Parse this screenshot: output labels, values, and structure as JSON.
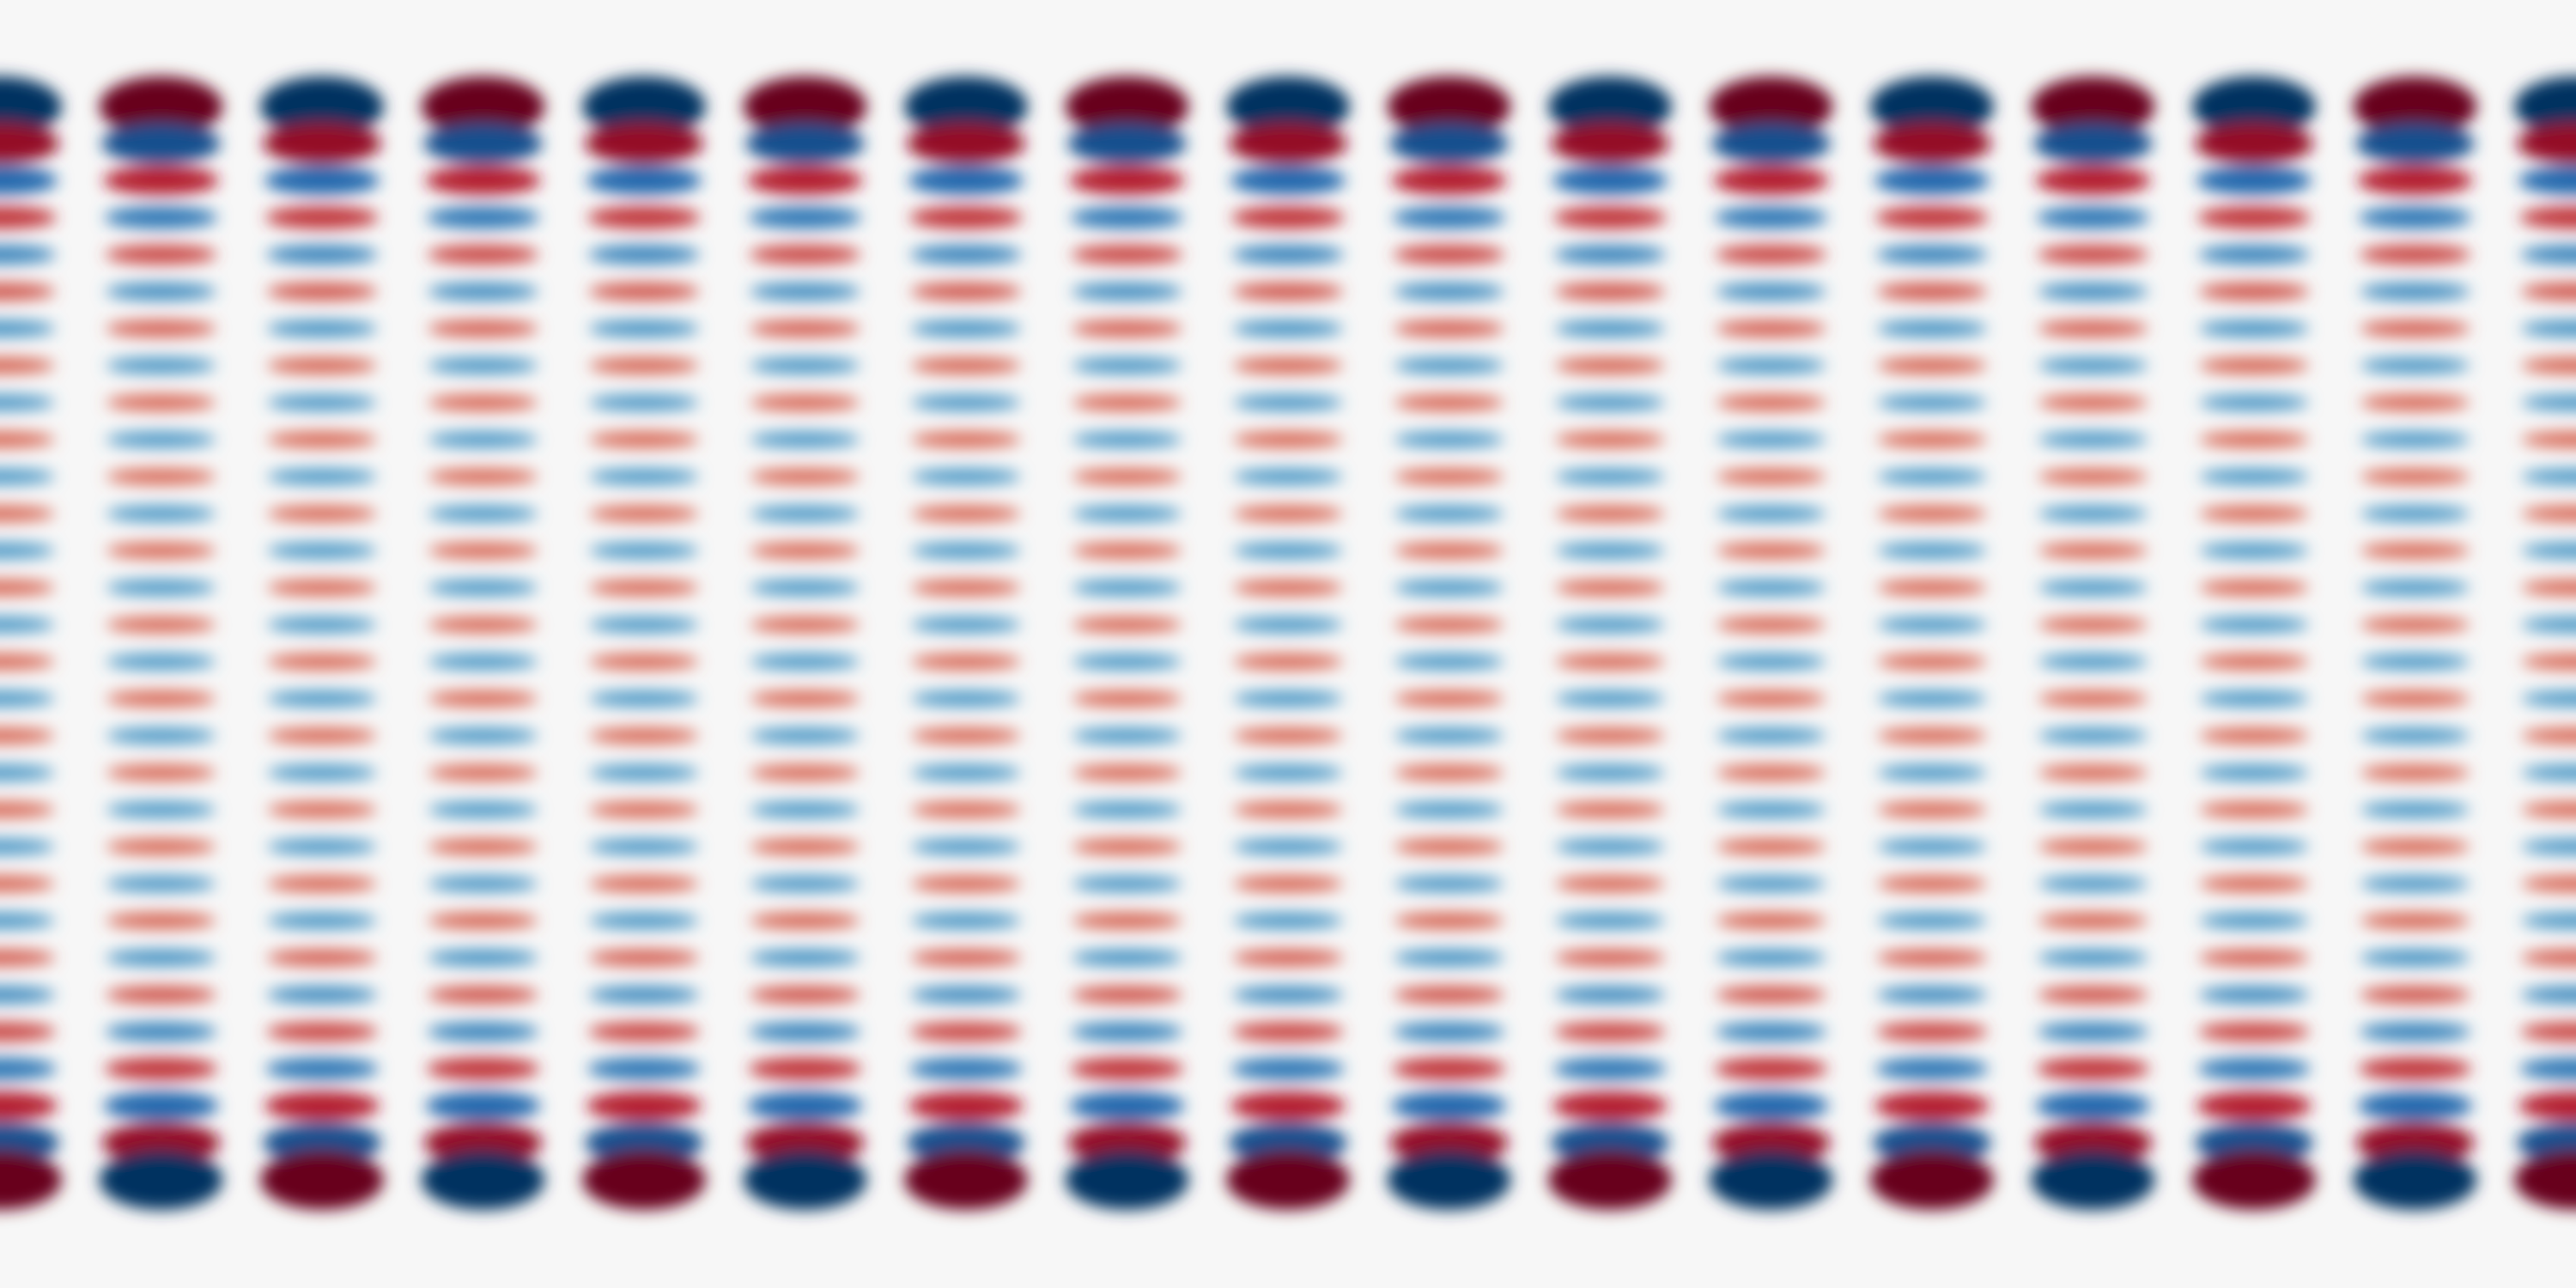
{
  "pattern": {
    "colormap": [
      "#053061",
      "#2166ac",
      "#4393c3",
      "#92c5de",
      "#f7f7f7",
      "#f4a582",
      "#d6604d",
      "#b2182b",
      "#67001f"
    ]
  }
}
